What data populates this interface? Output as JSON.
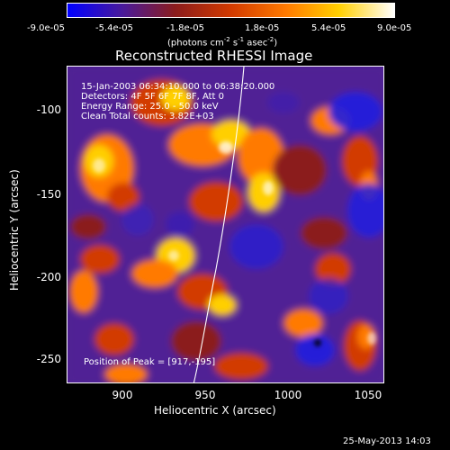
{
  "colorbar": {
    "ticks": [
      "-9.0e-05",
      "-5.4e-05",
      "-1.8e-05",
      "1.8e-05",
      "5.4e-05",
      "9.0e-05"
    ],
    "units_main": "(photons cm",
    "units_sup1": "-2",
    "units_mid1": " s",
    "units_sup2": "-1",
    "units_mid2": " asec",
    "units_sup3": "-2",
    "units_end": ")",
    "colors": [
      "#0000ff",
      "#4a1a9a",
      "#8b1c1c",
      "#d23a00",
      "#ff7a00",
      "#ffcf00",
      "#ffffff"
    ]
  },
  "figure": {
    "title": "Reconstructed RHESSI Image",
    "x_label": "Heliocentric X (arcsec)",
    "y_label": "Heliocentric Y (arcsec)",
    "x_ticks": [
      "900",
      "950",
      "1000",
      "1050"
    ],
    "y_ticks": [
      "-100",
      "-150",
      "-200",
      "-250"
    ],
    "annotations": [
      "15-Jan-2003 06:34:10.000 to 06:38:20.000",
      "Detectors: 4F 5F 6F 7F 8F, Att 0",
      "Energy Range: 25.0 - 50.0 keV",
      "Clean     Total counts: 3.82E+03"
    ],
    "peak_text": "Position of Peak = [917,-195]",
    "timestamp": "25-May-2013 14:03"
  }
}
